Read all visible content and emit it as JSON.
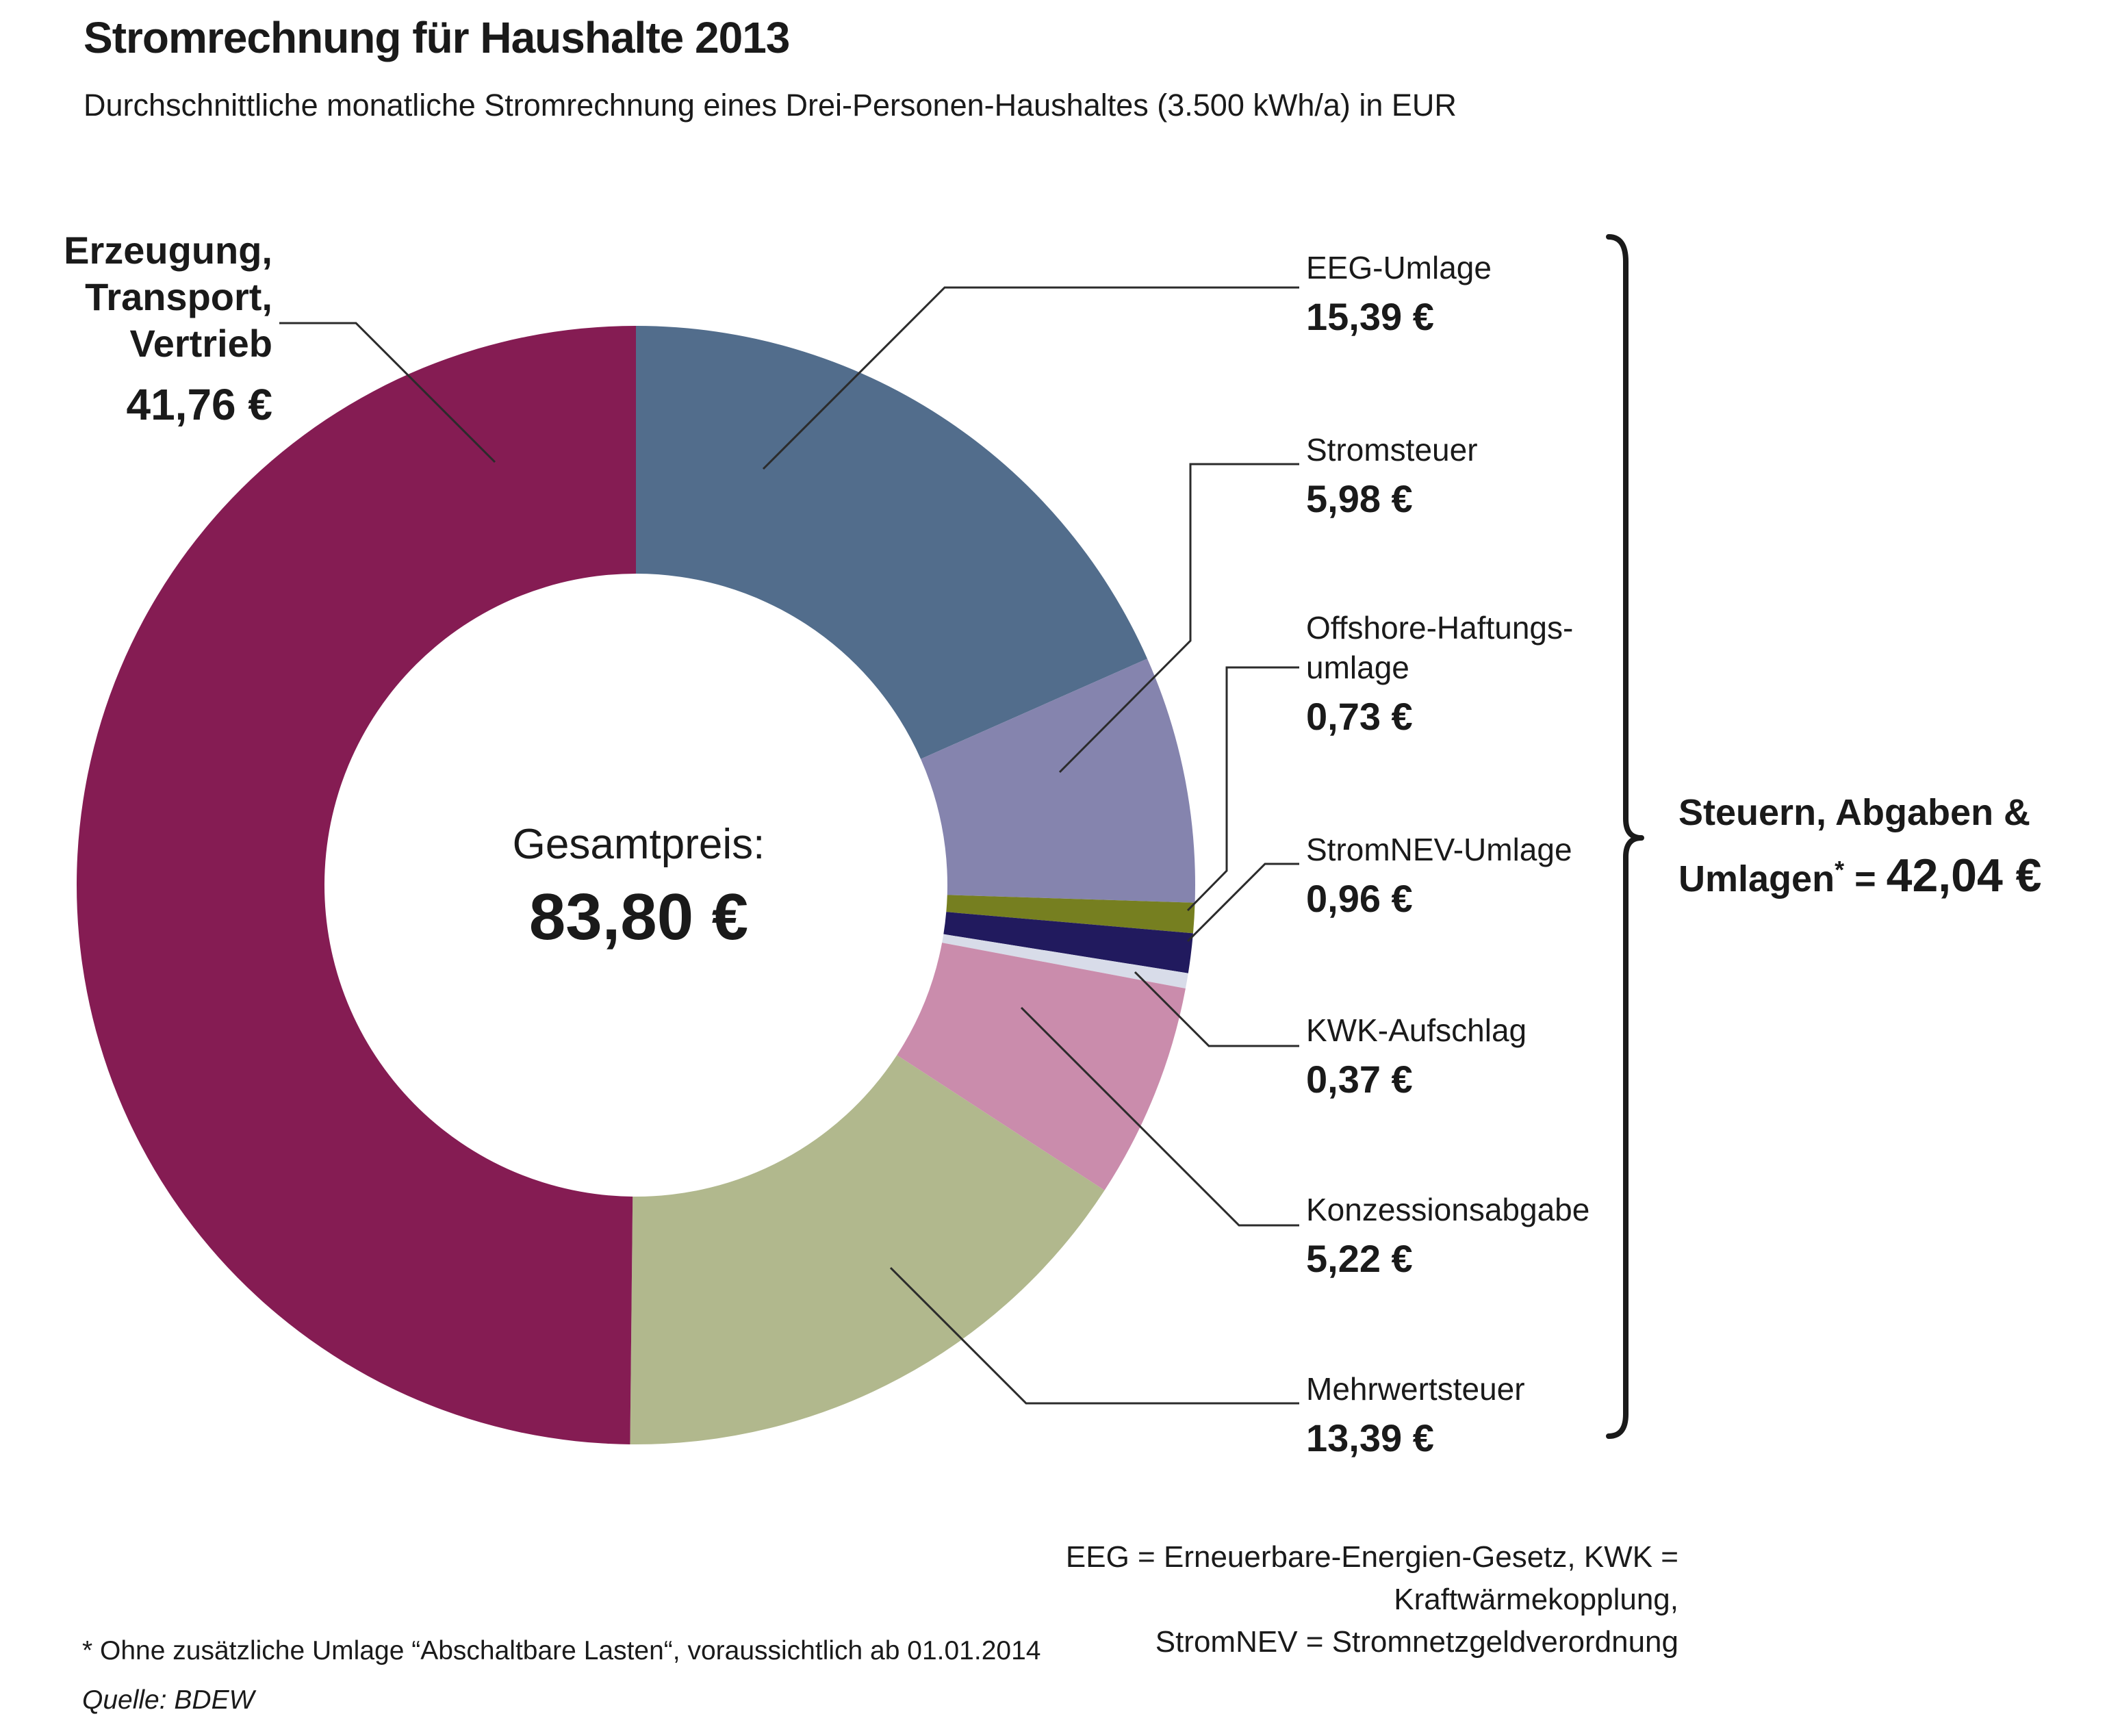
{
  "title": "Stromrechnung für Haushalte 2013",
  "subtitle": "Durchschnittliche monatliche Stromrechnung eines Drei-Personen-Haushaltes (3.500 kWh/a) in EUR",
  "center": {
    "label": "Gesamtpreis:",
    "value": "83,80 €"
  },
  "bracket": {
    "line1": "Steuern, Abgaben &",
    "line2_prefix": "Umlagen",
    "line2_sup": "*",
    "line2_eq": " = ",
    "line2_value": "42,04 €"
  },
  "abbreviations": {
    "line1": "EEG = Erneuerbare-Energien-Gesetz, KWK = Kraftwärmekopplung,",
    "line2": "StromNEV = Stromnetzgeldverordnung"
  },
  "footnote": "* Ohne zusätzliche Umlage “Abschaltbare Lasten“, voraussichtlich ab 01.01.2014",
  "source": "Quelle: BDEW",
  "colors": {
    "text": "#1a1a1a",
    "leader_line": "#2b2b2b",
    "bracket": "#1a1a1a",
    "background": "#ffffff"
  },
  "chart_data": {
    "type": "pie",
    "subtype": "donut",
    "title": "Stromrechnung für Haushalte 2013",
    "unit": "EUR",
    "total": {
      "label": "Gesamtpreis:",
      "value": 83.8,
      "display": "83,80 €"
    },
    "start_at_12_oclock_clockwise": true,
    "legend_position": "callout-labels",
    "segments": [
      {
        "id": "eeg",
        "label_lines": [
          "EEG-Umlage"
        ],
        "value": 15.39,
        "display": "15,39 €",
        "color": "#526d8c"
      },
      {
        "id": "stromsteuer",
        "label_lines": [
          "Stromsteuer"
        ],
        "value": 5.98,
        "display": "5,98 €",
        "color": "#8584ae"
      },
      {
        "id": "offshore",
        "label_lines": [
          "Offshore-Haftungs-",
          "umlage"
        ],
        "value": 0.73,
        "display": "0,73 €",
        "color": "#767f20"
      },
      {
        "id": "stromnev",
        "label_lines": [
          "StromNEV-Umlage"
        ],
        "value": 0.96,
        "display": "0,96 €",
        "color": "#211a5e"
      },
      {
        "id": "kwk",
        "label_lines": [
          "KWK-Aufschlag"
        ],
        "value": 0.37,
        "display": "0,37 €",
        "color": "#d8dce9"
      },
      {
        "id": "konzession",
        "label_lines": [
          "Konzessionsabgabe"
        ],
        "value": 5.22,
        "display": "5,22 €",
        "color": "#ca8cac"
      },
      {
        "id": "mwst",
        "label_lines": [
          "Mehrwertsteuer"
        ],
        "value": 13.39,
        "display": "13,39 €",
        "color": "#b1b88d"
      },
      {
        "id": "erzeugung",
        "label_lines": [
          "Erzeugung,",
          "Transport,",
          "Vertrieb"
        ],
        "value": 41.76,
        "display": "41,76 €",
        "color": "#851c53"
      }
    ],
    "groups": [
      {
        "label": "Steuern, Abgaben & Umlagen*",
        "value": 42.04,
        "display": "42,04 €",
        "members": [
          "eeg",
          "stromsteuer",
          "offshore",
          "stromnev",
          "kwk",
          "konzession",
          "mwst"
        ]
      }
    ]
  }
}
